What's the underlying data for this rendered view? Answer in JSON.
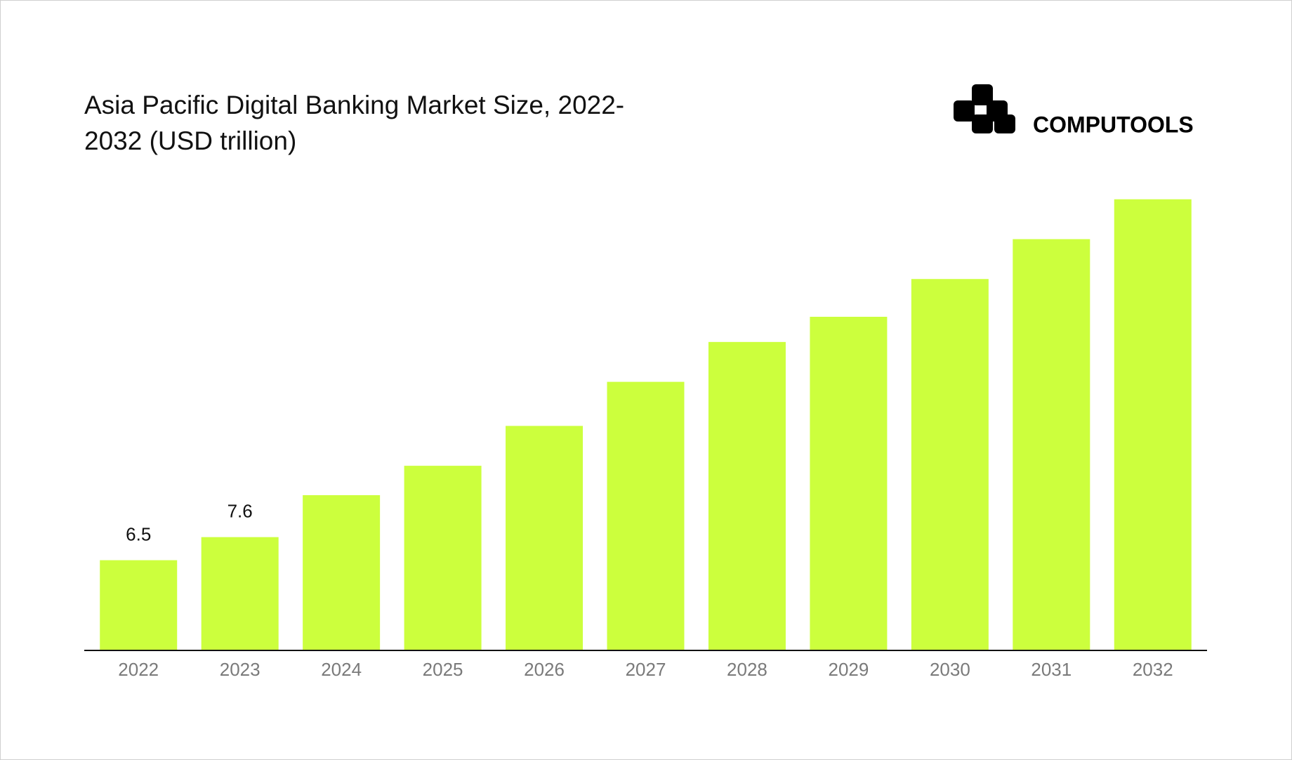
{
  "chart_data": {
    "type": "bar",
    "title": "Asia Pacific Digital Banking Market Size, 2022-2032 (USD trillion)",
    "brand": "COMPUTOOLS",
    "categories": [
      "2022",
      "2023",
      "2024",
      "2025",
      "2026",
      "2027",
      "2028",
      "2029",
      "2030",
      "2031",
      "2032"
    ],
    "values": [
      6.5,
      7.6,
      9.6,
      11.0,
      12.9,
      15.0,
      16.9,
      18.1,
      19.9,
      21.8,
      23.7
    ],
    "value_labels": [
      "6.5",
      "7.6",
      null,
      null,
      null,
      null,
      null,
      null,
      null,
      null,
      null
    ],
    "color": "#ccff3d",
    "ylim": [
      2.2,
      26
    ]
  }
}
